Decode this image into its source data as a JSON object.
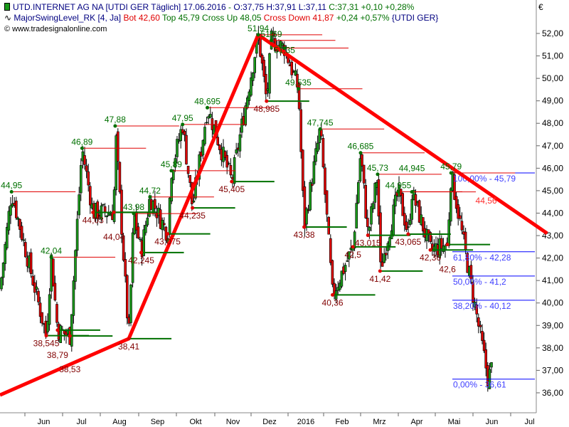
{
  "header": {
    "symbol": "UTD.INTERNET AG NA [UTDI GER  Täglich]",
    "date": "17.06.2016",
    "sep": " - ",
    "ohlc": "O:37,75 H:37,91 L:37,11",
    "close": "C:37,31 +0,10 +0,28%",
    "indicator": "MajorSwingLevel_RK [4, Ja]",
    "bot": "Bot 42,60",
    "top": "Top 45,79 Cross Up 48,05",
    "cross_down": "Cross Down 41,87",
    "change": "+0,24 +0,57%",
    "suffix": "{UTDI GER}",
    "copyright": "www.tradesignalonline.com",
    "currency": "€"
  },
  "colors": {
    "up": "#1a9a1a",
    "down": "#e00000",
    "trend": "#ff0000",
    "support": "#007000",
    "fib": "#0000ff",
    "high_label": "#007000",
    "low_label": "#800000"
  },
  "chart_data": {
    "type": "candlestick",
    "ylim": [
      35.5,
      53
    ],
    "y_ticks": [
      "36,00",
      "37,00",
      "38,00",
      "39,00",
      "40,00",
      "41,00",
      "42,00",
      "43,00",
      "44,00",
      "45,00",
      "46,00",
      "47,00",
      "48,00",
      "49,00",
      "50,00",
      "51,00",
      "52,00"
    ],
    "x_ticks": [
      "Jun",
      "Jul",
      "Aug",
      "Sep",
      "Okt",
      "Nov",
      "Dez",
      "2016",
      "Feb",
      "Mrz",
      "Apr",
      "Mai",
      "Jun",
      "Jul"
    ],
    "swing_points": [
      {
        "date": "2015-05-21",
        "price": 44.95,
        "label": "44,95",
        "kind": "high"
      },
      {
        "date": "2015-06-18",
        "price": 38.545,
        "label": "38,545",
        "kind": "low"
      },
      {
        "date": "2015-06-22",
        "price": 42.04,
        "label": "42,04",
        "kind": "high"
      },
      {
        "date": "2015-06-27",
        "price": 38.79,
        "label": "38,79",
        "kind": "low"
      },
      {
        "date": "2015-07-07",
        "price": 38.53,
        "label": "38,53",
        "kind": "low"
      },
      {
        "date": "2015-07-17",
        "price": 46.89,
        "label": "46,89",
        "kind": "high"
      },
      {
        "date": "2015-07-26",
        "price": 44.03,
        "label": "44,03",
        "kind": "low"
      },
      {
        "date": "2015-08-12",
        "price": 44.04,
        "label": "44,04",
        "kind": "low"
      },
      {
        "date": "2015-08-13",
        "price": 47.88,
        "label": "47,88",
        "kind": "high"
      },
      {
        "date": "2015-08-24",
        "price": 38.41,
        "label": "38,41",
        "kind": "low"
      },
      {
        "date": "2015-08-28",
        "price": 43.98,
        "label": "43,98",
        "kind": "high"
      },
      {
        "date": "2015-09-03",
        "price": 42.245,
        "label": "42,245",
        "kind": "low"
      },
      {
        "date": "2015-09-10",
        "price": 44.72,
        "label": "44,72",
        "kind": "high"
      },
      {
        "date": "2015-09-24",
        "price": 43.075,
        "label": "43,075",
        "kind": "low"
      },
      {
        "date": "2015-09-27",
        "price": 45.89,
        "label": "45,89",
        "kind": "high"
      },
      {
        "date": "2015-10-06",
        "price": 47.95,
        "label": "47,95",
        "kind": "high"
      },
      {
        "date": "2015-10-14",
        "price": 44.235,
        "label": "44,235",
        "kind": "low"
      },
      {
        "date": "2015-10-26",
        "price": 48.695,
        "label": "48,695",
        "kind": "high"
      },
      {
        "date": "2015-11-15",
        "price": 45.405,
        "label": "45,405",
        "kind": "low"
      },
      {
        "date": "2015-12-07",
        "price": 51.94,
        "label": "51,94",
        "kind": "high"
      },
      {
        "date": "2015-12-14",
        "price": 48.985,
        "label": "48,985",
        "kind": "low"
      },
      {
        "date": "2015-12-18",
        "price": 51.69,
        "label": "51,69",
        "kind": "high"
      },
      {
        "date": "2015-12-29",
        "price": 51.35,
        "label": "51,35",
        "kind": "high"
      },
      {
        "date": "2016-01-10",
        "price": 49.535,
        "label": "49,535",
        "kind": "high"
      },
      {
        "date": "2016-01-15",
        "price": 43.38,
        "label": "43,38",
        "kind": "low"
      },
      {
        "date": "2016-01-29",
        "price": 47.745,
        "label": "47,745",
        "kind": "high"
      },
      {
        "date": "2016-02-08",
        "price": 40.36,
        "label": "40,36",
        "kind": "low"
      },
      {
        "date": "2016-02-24",
        "price": 42.5,
        "label": "42,5",
        "kind": "low"
      },
      {
        "date": "2016-03-01",
        "price": 46.685,
        "label": "46,685",
        "kind": "high"
      },
      {
        "date": "2016-03-07",
        "price": 43.015,
        "label": "43,015",
        "kind": "low"
      },
      {
        "date": "2016-03-15",
        "price": 45.73,
        "label": "45,73",
        "kind": "high"
      },
      {
        "date": "2016-03-17",
        "price": 41.42,
        "label": "41,42",
        "kind": "low"
      },
      {
        "date": "2016-04-01",
        "price": 44.955,
        "label": "44,955",
        "kind": "high"
      },
      {
        "date": "2016-04-09",
        "price": 43.065,
        "label": "43,065",
        "kind": "low"
      },
      {
        "date": "2016-04-12",
        "price": 44.945,
        "label": "44,945",
        "kind": "high"
      },
      {
        "date": "2016-04-27",
        "price": 42.36,
        "label": "42,36",
        "kind": "low"
      },
      {
        "date": "2016-05-11",
        "price": 42.6,
        "label": "42,6",
        "kind": "low"
      },
      {
        "date": "2016-05-14",
        "price": 45.79,
        "label": "45,79",
        "kind": "high"
      },
      {
        "date": "2016-06-13",
        "price": 36.61,
        "label": "",
        "kind": "low"
      },
      {
        "date": "2016-06-17",
        "price": 37.31,
        "label": "",
        "kind": "last"
      }
    ],
    "fib_levels": [
      {
        "pct": "100,00%",
        "price": 45.79,
        "label": "100,00% - 45,79"
      },
      {
        "pct": "61,80%",
        "price": 42.28,
        "label": "61,80% - 42,28"
      },
      {
        "pct": "50,00%",
        "price": 41.2,
        "label": "50,00% - 41,2"
      },
      {
        "pct": "38,20%",
        "price": 40.12,
        "label": "38,20% - 40,12"
      },
      {
        "pct": "0,00%",
        "price": 36.61,
        "label": "0,00% - 36,61"
      }
    ],
    "trend_lines": [
      [
        {
          "date": "2015-04-30",
          "price": 35.9
        },
        {
          "date": "2015-08-24",
          "price": 38.41
        },
        {
          "date": "2015-12-07",
          "price": 51.94
        }
      ],
      [
        {
          "date": "2015-12-07",
          "price": 51.94
        },
        {
          "date": "2016-07-31",
          "price": 43.1
        }
      ]
    ],
    "annotation": {
      "text": "44,56",
      "price": 44.56,
      "date": "2016-06-03"
    }
  }
}
